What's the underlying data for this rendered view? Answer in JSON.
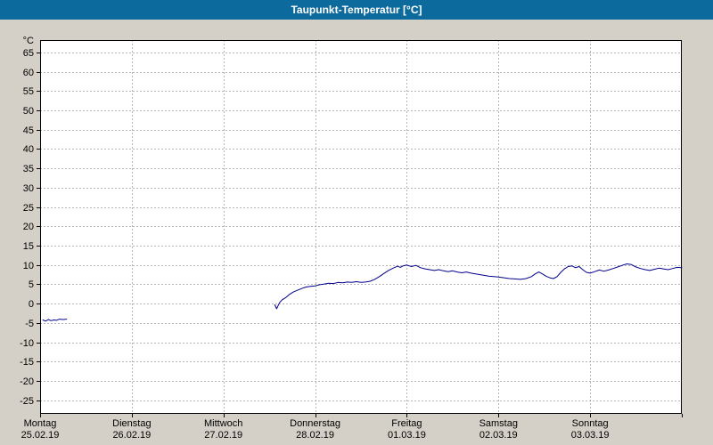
{
  "title_bar": {
    "title": "Taupunkt-Temperatur [°C]",
    "background": "#0d6a9c",
    "text_color": "#ffffff"
  },
  "chart_data": {
    "type": "line",
    "title": "Taupunkt-Temperatur [°C]",
    "ylabel": "°C",
    "unit_label": "°C",
    "grid": true,
    "legend_position": "none",
    "plot_bg": "#ffffff",
    "frame_color": "#000000",
    "grid_color": "#b4b4b4",
    "label_color": "#000000",
    "ylim": [
      -28.5,
      68.2
    ],
    "y_ticks": [
      65,
      60,
      55,
      50,
      45,
      40,
      35,
      30,
      25,
      20,
      15,
      10,
      5,
      0,
      -5,
      -10,
      -15,
      -20,
      -25
    ],
    "x_range_days": 7,
    "days": [
      {
        "name": "Montag",
        "date": "25.02.19"
      },
      {
        "name": "Dienstag",
        "date": "26.02.19"
      },
      {
        "name": "Mittwoch",
        "date": "27.02.19"
      },
      {
        "name": "Donnerstag",
        "date": "28.02.19"
      },
      {
        "name": "Freitag",
        "date": "01.03.19"
      },
      {
        "name": "Samstag",
        "date": "02.03.19"
      },
      {
        "name": "Sonntag",
        "date": "03.03.19"
      }
    ],
    "series": [
      {
        "name": "Taupunkt-Temperatur",
        "color": "#00008b",
        "segments": [
          [
            [
              0.03,
              -4.2
            ],
            [
              0.06,
              -4.5
            ],
            [
              0.09,
              -4.1
            ],
            [
              0.12,
              -4.4
            ],
            [
              0.15,
              -4.2
            ],
            [
              0.18,
              -4.3
            ],
            [
              0.21,
              -4.0
            ],
            [
              0.25,
              -4.1
            ],
            [
              0.29,
              -4.0
            ]
          ],
          [
            [
              2.56,
              -0.3
            ],
            [
              2.58,
              -1.3
            ],
            [
              2.61,
              0.2
            ],
            [
              2.64,
              1.0
            ],
            [
              2.68,
              1.6
            ],
            [
              2.72,
              2.4
            ],
            [
              2.76,
              3.0
            ],
            [
              2.8,
              3.4
            ],
            [
              2.85,
              3.9
            ],
            [
              2.9,
              4.3
            ],
            [
              2.95,
              4.5
            ],
            [
              3.0,
              4.6
            ],
            [
              3.05,
              4.9
            ],
            [
              3.1,
              5.1
            ],
            [
              3.15,
              5.3
            ],
            [
              3.2,
              5.2
            ],
            [
              3.25,
              5.5
            ],
            [
              3.3,
              5.4
            ],
            [
              3.35,
              5.6
            ],
            [
              3.4,
              5.5
            ],
            [
              3.45,
              5.7
            ],
            [
              3.5,
              5.5
            ],
            [
              3.55,
              5.6
            ],
            [
              3.6,
              5.8
            ],
            [
              3.65,
              6.3
            ],
            [
              3.7,
              7.0
            ],
            [
              3.75,
              7.8
            ],
            [
              3.8,
              8.6
            ],
            [
              3.85,
              9.2
            ],
            [
              3.9,
              9.7
            ],
            [
              3.93,
              9.4
            ],
            [
              3.96,
              9.8
            ],
            [
              4.0,
              10.0
            ],
            [
              4.05,
              9.6
            ],
            [
              4.1,
              9.9
            ],
            [
              4.15,
              9.3
            ],
            [
              4.2,
              9.0
            ],
            [
              4.25,
              8.8
            ],
            [
              4.3,
              8.6
            ],
            [
              4.35,
              8.8
            ],
            [
              4.4,
              8.5
            ],
            [
              4.45,
              8.3
            ],
            [
              4.5,
              8.5
            ],
            [
              4.55,
              8.2
            ],
            [
              4.6,
              8.0
            ],
            [
              4.65,
              8.2
            ],
            [
              4.7,
              7.9
            ],
            [
              4.75,
              7.7
            ],
            [
              4.8,
              7.5
            ],
            [
              4.85,
              7.3
            ],
            [
              4.9,
              7.1
            ],
            [
              4.95,
              7.0
            ],
            [
              5.0,
              6.9
            ],
            [
              5.06,
              6.7
            ],
            [
              5.12,
              6.5
            ],
            [
              5.18,
              6.4
            ],
            [
              5.24,
              6.3
            ],
            [
              5.3,
              6.5
            ],
            [
              5.36,
              7.0
            ],
            [
              5.4,
              7.7
            ],
            [
              5.44,
              8.2
            ],
            [
              5.48,
              7.7
            ],
            [
              5.52,
              7.1
            ],
            [
              5.56,
              6.7
            ],
            [
              5.6,
              6.5
            ],
            [
              5.64,
              7.0
            ],
            [
              5.68,
              8.1
            ],
            [
              5.72,
              9.0
            ],
            [
              5.76,
              9.6
            ],
            [
              5.8,
              9.8
            ],
            [
              5.84,
              9.3
            ],
            [
              5.88,
              9.6
            ],
            [
              5.92,
              8.8
            ],
            [
              5.96,
              8.1
            ],
            [
              6.0,
              7.9
            ],
            [
              6.05,
              8.3
            ],
            [
              6.1,
              8.7
            ],
            [
              6.15,
              8.4
            ],
            [
              6.2,
              8.7
            ],
            [
              6.25,
              9.1
            ],
            [
              6.3,
              9.5
            ],
            [
              6.35,
              9.9
            ],
            [
              6.4,
              10.3
            ],
            [
              6.45,
              10.1
            ],
            [
              6.5,
              9.5
            ],
            [
              6.55,
              9.1
            ],
            [
              6.6,
              8.8
            ],
            [
              6.65,
              8.6
            ],
            [
              6.7,
              8.9
            ],
            [
              6.75,
              9.2
            ],
            [
              6.8,
              9.0
            ],
            [
              6.85,
              8.8
            ],
            [
              6.9,
              9.1
            ],
            [
              6.95,
              9.4
            ],
            [
              7.0,
              9.3
            ]
          ]
        ]
      }
    ]
  }
}
